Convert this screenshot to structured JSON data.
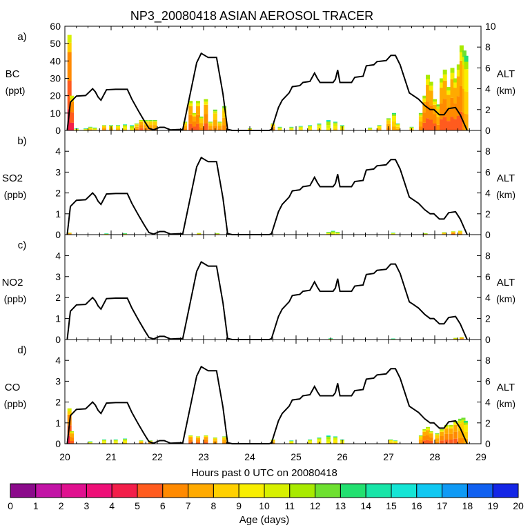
{
  "chart_data": {
    "type": "area",
    "title": "NP3_20080418 ASIAN AEROSOL TRACER",
    "xlabel": "Hours past 0 UTC on 20080418",
    "x_ticks": [
      "20",
      "21",
      "22",
      "23",
      "24",
      "25",
      "26",
      "27",
      "28",
      "29"
    ],
    "xlim": [
      20,
      29
    ],
    "altitude_track": {
      "name": "ALT (km)",
      "x": [
        20.05,
        20.12,
        20.25,
        20.45,
        20.6,
        20.66,
        20.72,
        20.78,
        20.9,
        21.1,
        21.35,
        21.45,
        21.6,
        21.72,
        21.82,
        21.92,
        22.05,
        22.15,
        22.28,
        22.55,
        22.85,
        22.95,
        23.1,
        23.28,
        23.42,
        23.52,
        23.62,
        24.0,
        24.25,
        24.42,
        24.47,
        24.62,
        24.7,
        24.85,
        24.92,
        25.08,
        25.15,
        25.3,
        25.4,
        25.46,
        25.52,
        25.8,
        25.85,
        25.9,
        25.95,
        26.2,
        26.27,
        26.45,
        26.52,
        26.68,
        26.75,
        26.95,
        27.05,
        27.15,
        27.25,
        27.45,
        27.55,
        27.65,
        27.78,
        27.9,
        27.98,
        28.1,
        28.2,
        28.3,
        28.45,
        28.55,
        28.7
      ],
      "values": [
        0,
        2.7,
        3.3,
        3.35,
        4.0,
        3.7,
        3.2,
        2.9,
        3.9,
        3.95,
        3.95,
        3.0,
        1.8,
        0.9,
        0.2,
        0.05,
        0.3,
        0.3,
        0.05,
        0.1,
        6.5,
        7.4,
        7.0,
        7.0,
        3.5,
        0.1,
        0,
        0,
        0,
        0,
        0.1,
        2.2,
        2.9,
        3.6,
        4.2,
        4.3,
        4.6,
        4.7,
        5.5,
        5.0,
        4.6,
        4.6,
        4.9,
        5.8,
        4.6,
        4.6,
        5.1,
        5.2,
        6.2,
        6.3,
        6.6,
        6.7,
        7.2,
        7.2,
        6.3,
        3.6,
        3.3,
        3.0,
        2.4,
        2.0,
        2.0,
        1.5,
        1.5,
        2.1,
        2.2,
        1.5,
        0
      ]
    },
    "color_scale": {
      "label": "Age (days)",
      "ticks": [
        "0",
        "1",
        "2",
        "3",
        "4",
        "5",
        "6",
        "7",
        "8",
        "9",
        "10",
        "11",
        "12",
        "13",
        "14",
        "15",
        "16",
        "17",
        "18",
        "19",
        "20"
      ],
      "colors": [
        "#8b0a8b",
        "#c214a6",
        "#e0108f",
        "#ee0f77",
        "#f31e4a",
        "#ff5b1e",
        "#ff8a00",
        "#ffaa00",
        "#ffd000",
        "#f8ee00",
        "#d7f000",
        "#a8ea00",
        "#6ee030",
        "#22e070",
        "#18e5a8",
        "#14e5d5",
        "#10c8f2",
        "#0f9af5",
        "#1060f0",
        "#1426e6",
        "#6018f0"
      ]
    },
    "panels": [
      {
        "panel": "a)",
        "species": "BC",
        "unit": "(ppt)",
        "left_ticks": [
          "0",
          "10",
          "20",
          "30",
          "40",
          "50",
          "60"
        ],
        "ylim": [
          0,
          60
        ],
        "right_label": "ALT",
        "right_unit": "(km)",
        "right_ticks": [
          "0",
          "2",
          "4",
          "6",
          "8",
          "10"
        ],
        "alt_max": 10,
        "bars": [
          {
            "x": 20.1,
            "total": 55,
            "age": 6
          },
          {
            "x": 20.15,
            "total": 20,
            "age": 6
          },
          {
            "x": 20.25,
            "total": 1,
            "age": 10
          },
          {
            "x": 20.45,
            "total": 1,
            "age": 10
          },
          {
            "x": 20.55,
            "total": 2,
            "age": 9
          },
          {
            "x": 20.65,
            "total": 1.5,
            "age": 10
          },
          {
            "x": 20.85,
            "total": 3,
            "age": 8
          },
          {
            "x": 21.0,
            "total": 3,
            "age": 9
          },
          {
            "x": 21.15,
            "total": 3,
            "age": 9
          },
          {
            "x": 21.3,
            "total": 3.5,
            "age": 10
          },
          {
            "x": 21.45,
            "total": 3,
            "age": 11
          },
          {
            "x": 21.55,
            "total": 4,
            "age": 8
          },
          {
            "x": 21.65,
            "total": 6,
            "age": 7
          },
          {
            "x": 21.75,
            "total": 6,
            "age": 8
          },
          {
            "x": 21.85,
            "total": 6,
            "age": 8
          },
          {
            "x": 21.95,
            "total": 6,
            "age": 8
          },
          {
            "x": 22.6,
            "total": 5,
            "age": 8
          },
          {
            "x": 22.72,
            "total": 17,
            "age": 7
          },
          {
            "x": 22.8,
            "total": 10,
            "age": 7
          },
          {
            "x": 22.88,
            "total": 17,
            "age": 7
          },
          {
            "x": 22.95,
            "total": 8,
            "age": 8
          },
          {
            "x": 23.05,
            "total": 18,
            "age": 7
          },
          {
            "x": 23.15,
            "total": 5,
            "age": 8
          },
          {
            "x": 23.25,
            "total": 12,
            "age": 8
          },
          {
            "x": 23.35,
            "total": 5,
            "age": 8
          },
          {
            "x": 23.45,
            "total": 14,
            "age": 8
          },
          {
            "x": 24.0,
            "total": 1,
            "age": 8
          },
          {
            "x": 24.5,
            "total": 4,
            "age": 8
          },
          {
            "x": 24.65,
            "total": 2,
            "age": 10
          },
          {
            "x": 24.9,
            "total": 2,
            "age": 10
          },
          {
            "x": 25.1,
            "total": 2.5,
            "age": 10
          },
          {
            "x": 25.3,
            "total": 3,
            "age": 10
          },
          {
            "x": 25.5,
            "total": 4,
            "age": 10
          },
          {
            "x": 25.7,
            "total": 6,
            "age": 11
          },
          {
            "x": 25.85,
            "total": 5,
            "age": 10
          },
          {
            "x": 26.0,
            "total": 3,
            "age": 10
          },
          {
            "x": 26.6,
            "total": 1.5,
            "age": 10
          },
          {
            "x": 26.8,
            "total": 3,
            "age": 9
          },
          {
            "x": 27.0,
            "total": 7,
            "age": 8
          },
          {
            "x": 27.12,
            "total": 10,
            "age": 9
          },
          {
            "x": 27.2,
            "total": 4,
            "age": 9
          },
          {
            "x": 27.5,
            "total": 2,
            "age": 9
          },
          {
            "x": 27.7,
            "total": 10,
            "age": 8
          },
          {
            "x": 27.78,
            "total": 20,
            "age": 7
          },
          {
            "x": 27.85,
            "total": 32,
            "age": 7
          },
          {
            "x": 27.92,
            "total": 28,
            "age": 7
          },
          {
            "x": 28.0,
            "total": 18,
            "age": 7
          },
          {
            "x": 28.08,
            "total": 15,
            "age": 8
          },
          {
            "x": 28.15,
            "total": 30,
            "age": 7
          },
          {
            "x": 28.22,
            "total": 35,
            "age": 7
          },
          {
            "x": 28.3,
            "total": 25,
            "age": 7
          },
          {
            "x": 28.38,
            "total": 36,
            "age": 7
          },
          {
            "x": 28.45,
            "total": 30,
            "age": 7
          },
          {
            "x": 28.52,
            "total": 38,
            "age": 7
          },
          {
            "x": 28.58,
            "total": 49,
            "age": 7
          },
          {
            "x": 28.64,
            "total": 46,
            "age": 8
          },
          {
            "x": 28.68,
            "total": 43,
            "age": 9
          }
        ]
      },
      {
        "panel": "b)",
        "species": "SO2",
        "unit": "(ppb)",
        "left_ticks": [
          "0",
          "1",
          "2",
          "3",
          "4"
        ],
        "ylim": [
          0,
          5
        ],
        "right_label": "ALT",
        "right_unit": "(km)",
        "right_ticks": [
          "0",
          "2",
          "4",
          "6",
          "8"
        ],
        "alt_max": 10,
        "bars": [
          {
            "x": 20.1,
            "total": 0.08,
            "age": 7
          },
          {
            "x": 20.9,
            "total": 0.04,
            "age": 10
          },
          {
            "x": 21.3,
            "total": 0.05,
            "age": 10
          },
          {
            "x": 22.9,
            "total": 0.06,
            "age": 8
          },
          {
            "x": 23.3,
            "total": 0.05,
            "age": 8
          },
          {
            "x": 25.7,
            "total": 0.12,
            "age": 10
          },
          {
            "x": 25.8,
            "total": 0.18,
            "age": 11
          },
          {
            "x": 25.9,
            "total": 0.12,
            "age": 10
          },
          {
            "x": 27.1,
            "total": 0.08,
            "age": 10
          },
          {
            "x": 27.8,
            "total": 0.05,
            "age": 8
          },
          {
            "x": 28.2,
            "total": 0.1,
            "age": 8
          },
          {
            "x": 28.4,
            "total": 0.15,
            "age": 7
          },
          {
            "x": 28.55,
            "total": 0.18,
            "age": 8
          }
        ]
      },
      {
        "panel": "c)",
        "species": "NO2",
        "unit": "(ppb)",
        "left_ticks": [
          "0",
          "1",
          "2",
          "3",
          "4"
        ],
        "ylim": [
          0,
          5
        ],
        "right_label": "ALT",
        "right_unit": "(km)",
        "right_ticks": [
          "0",
          "2",
          "4",
          "6",
          "8"
        ],
        "alt_max": 10,
        "bars": [
          {
            "x": 25.75,
            "total": 0.04,
            "age": 10
          },
          {
            "x": 27.1,
            "total": 0.03,
            "age": 10
          },
          {
            "x": 28.45,
            "total": 0.06,
            "age": 8
          },
          {
            "x": 28.58,
            "total": 0.1,
            "age": 7
          }
        ]
      },
      {
        "panel": "d)",
        "species": "CO",
        "unit": "(ppb)",
        "left_ticks": [
          "0",
          "1",
          "2",
          "3",
          "4"
        ],
        "ylim": [
          0,
          5
        ],
        "right_label": "ALT",
        "right_unit": "(km)",
        "right_ticks": [
          "0",
          "2",
          "4",
          "6",
          "8"
        ],
        "alt_max": 10,
        "bars": [
          {
            "x": 20.1,
            "total": 1.7,
            "age": 6
          },
          {
            "x": 20.15,
            "total": 0.6,
            "age": 7
          },
          {
            "x": 20.55,
            "total": 0.1,
            "age": 10
          },
          {
            "x": 20.85,
            "total": 0.2,
            "age": 10
          },
          {
            "x": 21.1,
            "total": 0.2,
            "age": 10
          },
          {
            "x": 21.3,
            "total": 0.25,
            "age": 10
          },
          {
            "x": 21.65,
            "total": 0.15,
            "age": 8
          },
          {
            "x": 21.85,
            "total": 0.15,
            "age": 8
          },
          {
            "x": 22.72,
            "total": 0.4,
            "age": 7
          },
          {
            "x": 22.88,
            "total": 0.35,
            "age": 7
          },
          {
            "x": 23.05,
            "total": 0.4,
            "age": 7
          },
          {
            "x": 23.25,
            "total": 0.3,
            "age": 8
          },
          {
            "x": 23.45,
            "total": 0.35,
            "age": 8
          },
          {
            "x": 24.5,
            "total": 0.2,
            "age": 8
          },
          {
            "x": 24.9,
            "total": 0.15,
            "age": 10
          },
          {
            "x": 25.3,
            "total": 0.2,
            "age": 10
          },
          {
            "x": 25.5,
            "total": 0.3,
            "age": 10
          },
          {
            "x": 25.7,
            "total": 0.4,
            "age": 11
          },
          {
            "x": 25.85,
            "total": 0.35,
            "age": 10
          },
          {
            "x": 26.0,
            "total": 0.2,
            "age": 10
          },
          {
            "x": 27.05,
            "total": 0.2,
            "age": 9
          },
          {
            "x": 27.15,
            "total": 0.15,
            "age": 9
          },
          {
            "x": 27.7,
            "total": 0.4,
            "age": 8
          },
          {
            "x": 27.78,
            "total": 0.7,
            "age": 7
          },
          {
            "x": 27.85,
            "total": 0.8,
            "age": 7
          },
          {
            "x": 27.92,
            "total": 0.6,
            "age": 7
          },
          {
            "x": 28.05,
            "total": 0.5,
            "age": 8
          },
          {
            "x": 28.15,
            "total": 0.7,
            "age": 7
          },
          {
            "x": 28.25,
            "total": 0.9,
            "age": 7
          },
          {
            "x": 28.35,
            "total": 0.9,
            "age": 7
          },
          {
            "x": 28.45,
            "total": 1.1,
            "age": 7
          },
          {
            "x": 28.55,
            "total": 1.2,
            "age": 8
          },
          {
            "x": 28.62,
            "total": 1.25,
            "age": 8
          },
          {
            "x": 28.67,
            "total": 1.1,
            "age": 9
          }
        ]
      }
    ]
  }
}
